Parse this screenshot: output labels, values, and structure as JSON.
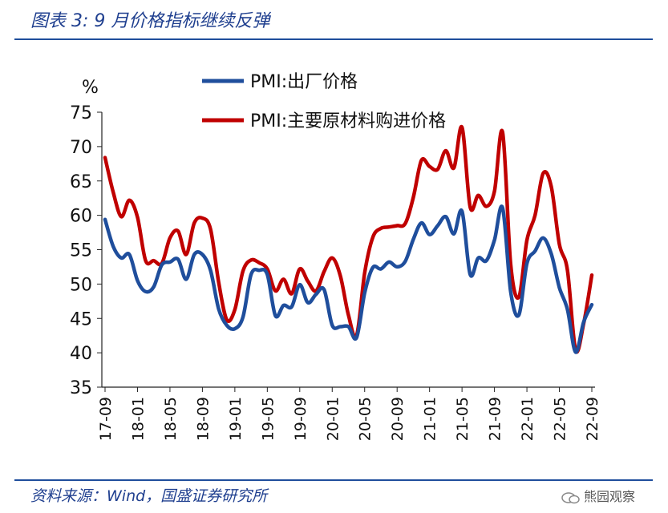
{
  "header": {
    "title": "图表 3:  9 月价格指标继续反弹"
  },
  "footer": {
    "source": "资料来源：Wind，国盛证券研究所",
    "watermark": "熊园观察"
  },
  "colors": {
    "output_price": "#1f4e9c",
    "input_price": "#c00000",
    "rule": "#1f4e9c"
  },
  "chart_data": {
    "type": "line",
    "title": "",
    "ylabel": "%",
    "xlabel": "",
    "ylim": [
      35,
      75
    ],
    "yticks": [
      35,
      40,
      45,
      50,
      55,
      60,
      65,
      70,
      75
    ],
    "x_tick_labels": [
      "17-09",
      "18-01",
      "18-05",
      "18-09",
      "19-01",
      "19-05",
      "19-09",
      "20-01",
      "20-05",
      "20-09",
      "21-01",
      "21-05",
      "21-09",
      "22-01",
      "22-05",
      "22-09"
    ],
    "legend_position": "top-center",
    "x": [
      "17-09",
      "17-10",
      "17-11",
      "17-12",
      "18-01",
      "18-02",
      "18-03",
      "18-04",
      "18-05",
      "18-06",
      "18-07",
      "18-08",
      "18-09",
      "18-10",
      "18-11",
      "18-12",
      "19-01",
      "19-02",
      "19-03",
      "19-04",
      "19-05",
      "19-06",
      "19-07",
      "19-08",
      "19-09",
      "19-10",
      "19-11",
      "19-12",
      "20-01",
      "20-02",
      "20-03",
      "20-04",
      "20-05",
      "20-06",
      "20-07",
      "20-08",
      "20-09",
      "20-10",
      "20-11",
      "20-12",
      "21-01",
      "21-02",
      "21-03",
      "21-04",
      "21-05",
      "21-06",
      "21-07",
      "21-08",
      "21-09",
      "21-10",
      "21-11",
      "21-12",
      "22-01",
      "22-02",
      "22-03",
      "22-04",
      "22-05",
      "22-06",
      "22-07",
      "22-08",
      "22-09"
    ],
    "series": [
      {
        "name": "PMI:出厂价格",
        "values": [
          59.4,
          55.5,
          53.8,
          54.3,
          50.5,
          48.9,
          49.6,
          52.8,
          53.2,
          53.6,
          50.7,
          54.3,
          54.3,
          52.0,
          46.4,
          44.0,
          43.5,
          45.2,
          51.4,
          52.0,
          51.4,
          45.4,
          46.9,
          46.7,
          49.9,
          47.3,
          48.5,
          49.2,
          44.0,
          43.8,
          43.8,
          42.2,
          48.7,
          52.4,
          52.2,
          53.2,
          52.5,
          53.3,
          56.5,
          58.9,
          57.2,
          58.5,
          59.8,
          57.3,
          60.6,
          51.4,
          53.8,
          53.4,
          56.4,
          61.1,
          48.9,
          45.5,
          53.0,
          54.8,
          56.7,
          54.4,
          49.5,
          46.3,
          40.1,
          44.5,
          47.0
        ]
      },
      {
        "name": "PMI:主要原材料购进价格",
        "values": [
          68.4,
          63.4,
          59.8,
          62.2,
          59.7,
          53.4,
          53.4,
          53.0,
          56.7,
          57.7,
          54.3,
          58.9,
          59.6,
          58.0,
          50.3,
          44.8,
          46.3,
          51.9,
          53.5,
          53.1,
          52.2,
          49.0,
          50.7,
          48.6,
          52.2,
          50.4,
          49.0,
          51.8,
          53.8,
          51.2,
          45.5,
          42.5,
          51.6,
          56.8,
          58.1,
          58.3,
          58.5,
          58.8,
          62.6,
          68.0,
          67.1,
          66.7,
          69.4,
          66.9,
          72.8,
          61.2,
          62.9,
          61.3,
          63.5,
          72.1,
          52.9,
          48.1,
          56.4,
          60.0,
          66.1,
          64.2,
          55.8,
          52.0,
          40.4,
          44.3,
          51.3
        ]
      }
    ]
  }
}
